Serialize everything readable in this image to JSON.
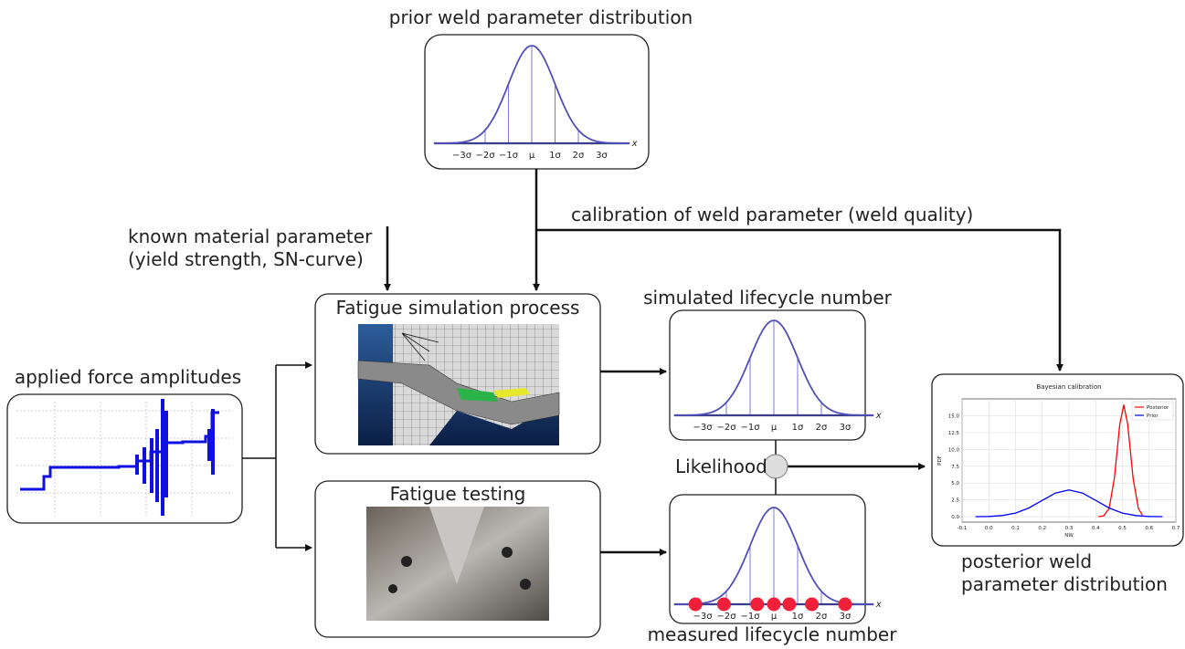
{
  "title": "prior weld parameter distribution",
  "gaussian_axis": {
    "labels": [
      "−3σ",
      "−2σ",
      "−1σ",
      "μ",
      "1σ",
      "2σ",
      "3σ"
    ],
    "axis_label": "x"
  },
  "calibration_label": "calibration of weld parameter (weld quality)",
  "known_material": [
    "known material parameter",
    "(yield strength, SN-curve)"
  ],
  "simulation": {
    "title": "Fatigue simulation process"
  },
  "simulated": {
    "title": "simulated lifecycle number"
  },
  "force": {
    "title": "applied force amplitudes"
  },
  "likelihood": "Likelihood",
  "testing": {
    "title": "Fatigue testing"
  },
  "measured": {
    "title": "measured lifecycle number"
  },
  "posterior": {
    "caption": [
      "posterior weld",
      "parameter distribution"
    ]
  },
  "bayesian_plot": {
    "type": "line",
    "title": "Bayesian calibration",
    "xlabel": "NW",
    "ylabel": "PDF",
    "xlim": [
      -0.1,
      0.7
    ],
    "ylim": [
      -0.8,
      17.5
    ],
    "xticks": [
      -0.1,
      {
        "value": 0,
        "label": "0.0"
      },
      0.1,
      0.2,
      0.3,
      0.4,
      0.5,
      0.6,
      0.7
    ],
    "yticks": [
      {
        "value": 0,
        "label": "0.0"
      },
      2.5,
      {
        "value": 5,
        "label": "5.0"
      },
      7.5,
      {
        "value": 10,
        "label": "10.0"
      },
      12.5,
      {
        "value": 15,
        "label": "15.0"
      }
    ],
    "grid": true,
    "legend": "upper right",
    "series": [
      {
        "name": "Posterior",
        "color": "#ff0000",
        "x": [
          0.41,
          0.43,
          0.45,
          0.47,
          0.49,
          0.505,
          0.52,
          0.54,
          0.56,
          0.575
        ],
        "values": [
          0.01,
          0.13,
          1.2,
          5.7,
          13.7,
          16.6,
          13.7,
          5.7,
          1.2,
          0.24
        ]
      },
      {
        "name": "Prior",
        "color": "#0000ff",
        "x": [
          -0.05,
          0,
          0.05,
          0.1,
          0.15,
          0.2,
          0.25,
          0.3,
          0.35,
          0.4,
          0.45,
          0.5,
          0.55,
          0.6,
          0.65
        ],
        "values": [
          0.01,
          0.04,
          0.18,
          0.54,
          1.3,
          2.42,
          3.52,
          3.99,
          3.52,
          2.42,
          1.3,
          0.54,
          0.18,
          0.04,
          0.01
        ]
      }
    ]
  }
}
